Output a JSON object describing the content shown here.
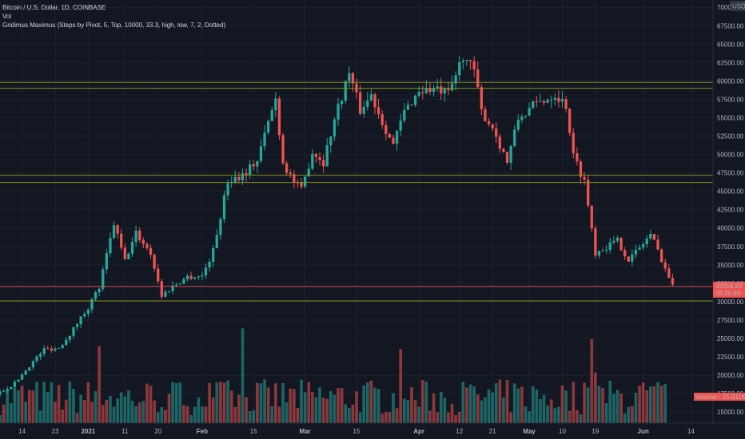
{
  "legend": {
    "line1": "Bitcoin / U.S. Dollar, 1D, COINBASE",
    "line2": "Vol",
    "line3": "Gridimus Maximus (Steps by Pivot, 5, Top, 10000, 33.3, high, low, 7, 2, Dotted)"
  },
  "currency_label": "USD",
  "price_tag": {
    "price": "32058.83",
    "countdown": "06:26:59"
  },
  "volume_tag": "Volume - 25.911K",
  "colors": {
    "up": "#26a69a",
    "down": "#ef5350",
    "grid_line": "#8c9a1b",
    "price_line": "#ef5350",
    "background": "#131722"
  },
  "chart_data": {
    "type": "candlestick",
    "title": "Bitcoin / U.S. Dollar, 1D, COINBASE",
    "y_ticks": [
      "70000.00",
      "67500.00",
      "65000.00",
      "62500.00",
      "60000.00",
      "57500.00",
      "55000.00",
      "52500.00",
      "50000.00",
      "47500.00",
      "45000.00",
      "42500.00",
      "40000.00",
      "37500.00",
      "35000.00",
      "32500.00",
      "30000.00",
      "27500.00",
      "25000.00",
      "22500.00",
      "20000.00",
      "17500.00",
      "15000.00"
    ],
    "y_range": [
      13500,
      71000
    ],
    "x_ticks": [
      {
        "label": "14",
        "date": "2020-12-14"
      },
      {
        "label": "23",
        "date": "2020-12-23"
      },
      {
        "label": "2021",
        "date": "2021-01-01"
      },
      {
        "label": "11",
        "date": "2021-01-11"
      },
      {
        "label": "20",
        "date": "2021-01-20"
      },
      {
        "label": "Feb",
        "date": "2021-02-01"
      },
      {
        "label": "15",
        "date": "2021-02-15"
      },
      {
        "label": "Mar",
        "date": "2021-03-01"
      },
      {
        "label": "15",
        "date": "2021-03-15"
      },
      {
        "label": "Apr",
        "date": "2021-04-01"
      },
      {
        "label": "12",
        "date": "2021-04-12"
      },
      {
        "label": "21",
        "date": "2021-04-21"
      },
      {
        "label": "May",
        "date": "2021-05-01"
      },
      {
        "label": "10",
        "date": "2021-05-10"
      },
      {
        "label": "19",
        "date": "2021-05-19"
      },
      {
        "label": "Jun",
        "date": "2021-06-01"
      },
      {
        "label": "14",
        "date": "2021-06-14"
      }
    ],
    "x_range": [
      "2020-12-08",
      "2021-06-20"
    ],
    "horizontal_levels": [
      59800,
      59000,
      47200,
      46200,
      32058.83,
      30100
    ],
    "series_close": [
      [
        "2020-12-08",
        17700
      ],
      [
        "2020-12-12",
        18900
      ],
      [
        "2020-12-16",
        21300
      ],
      [
        "2020-12-20",
        23500
      ],
      [
        "2020-12-24",
        23700
      ],
      [
        "2020-12-28",
        26300
      ],
      [
        "2021-01-01",
        29300
      ],
      [
        "2021-01-04",
        31900
      ],
      [
        "2021-01-08",
        40600
      ],
      [
        "2021-01-11",
        35500
      ],
      [
        "2021-01-14",
        39300
      ],
      [
        "2021-01-18",
        36600
      ],
      [
        "2021-01-21",
        30800
      ],
      [
        "2021-01-24",
        32100
      ],
      [
        "2021-01-28",
        33400
      ],
      [
        "2021-02-01",
        33500
      ],
      [
        "2021-02-04",
        36900
      ],
      [
        "2021-02-08",
        46400
      ],
      [
        "2021-02-12",
        47300
      ],
      [
        "2021-02-16",
        49200
      ],
      [
        "2021-02-20",
        56100
      ],
      [
        "2021-02-21",
        57500
      ],
      [
        "2021-02-23",
        48900
      ],
      [
        "2021-02-26",
        46300
      ],
      [
        "2021-02-28",
        45100
      ],
      [
        "2021-03-03",
        50400
      ],
      [
        "2021-03-06",
        49000
      ],
      [
        "2021-03-09",
        54800
      ],
      [
        "2021-03-13",
        61200
      ],
      [
        "2021-03-16",
        56000
      ],
      [
        "2021-03-19",
        58100
      ],
      [
        "2021-03-22",
        54500
      ],
      [
        "2021-03-25",
        51300
      ],
      [
        "2021-03-28",
        55800
      ],
      [
        "2021-04-01",
        58700
      ],
      [
        "2021-04-05",
        58900
      ],
      [
        "2021-04-09",
        58100
      ],
      [
        "2021-04-13",
        63500
      ],
      [
        "2021-04-16",
        61300
      ],
      [
        "2021-04-18",
        55800
      ],
      [
        "2021-04-21",
        53700
      ],
      [
        "2021-04-25",
        49000
      ],
      [
        "2021-04-28",
        54800
      ],
      [
        "2021-05-02",
        56600
      ],
      [
        "2021-05-05",
        57400
      ],
      [
        "2021-05-08",
        58200
      ],
      [
        "2021-05-11",
        56700
      ],
      [
        "2021-05-13",
        49800
      ],
      [
        "2021-05-16",
        46400
      ],
      [
        "2021-05-19",
        36700
      ],
      [
        "2021-05-22",
        37500
      ],
      [
        "2021-05-25",
        38300
      ],
      [
        "2021-05-28",
        35700
      ],
      [
        "2021-05-31",
        37300
      ],
      [
        "2021-06-03",
        39200
      ],
      [
        "2021-06-06",
        35800
      ],
      [
        "2021-06-09",
        32058.83
      ]
    ],
    "volume_bars": 182
  }
}
